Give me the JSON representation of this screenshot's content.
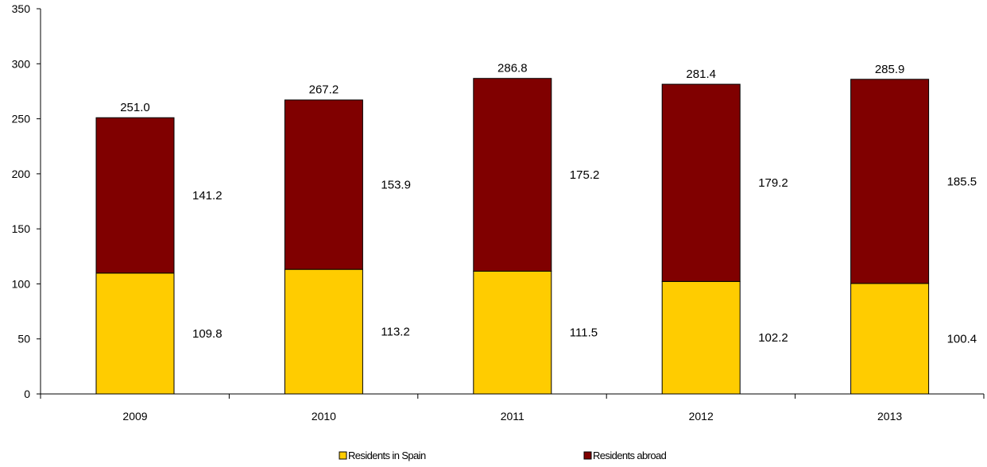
{
  "chart_data": {
    "type": "bar",
    "stacked": true,
    "categories": [
      "2009",
      "2010",
      "2011",
      "2012",
      "2013"
    ],
    "series": [
      {
        "name": "Residents in Spain",
        "values": [
          109.8,
          113.2,
          111.5,
          102.2,
          100.4
        ],
        "color": "#FFCC00"
      },
      {
        "name": "Residents abroad",
        "values": [
          141.2,
          153.9,
          175.2,
          179.2,
          185.5
        ],
        "color": "#800000"
      }
    ],
    "totals": [
      251.0,
      267.2,
      286.8,
      281.4,
      285.9
    ],
    "value_labels": {
      "series": [
        [
          "109.8",
          "113.2",
          "111.5",
          "102.2",
          "100.4"
        ],
        [
          "141.2",
          "153.9",
          "175.2",
          "179.2",
          "185.5"
        ]
      ],
      "totals": [
        "251.0",
        "267.2",
        "286.8",
        "281.4",
        "285.9"
      ]
    },
    "yticks": [
      "0",
      "50",
      "100",
      "150",
      "200",
      "250",
      "300",
      "350"
    ],
    "ylim": [
      0,
      350
    ],
    "grid": false,
    "legend": "bottom",
    "title": "",
    "xlabel": "",
    "ylabel": ""
  }
}
